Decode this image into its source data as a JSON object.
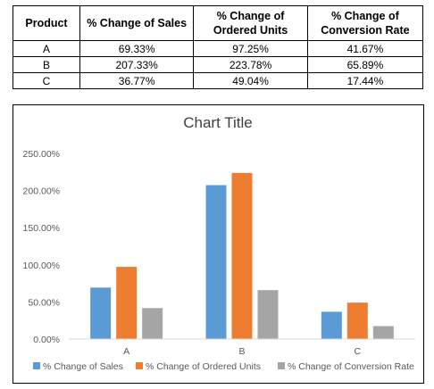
{
  "table": {
    "headers": [
      "Product",
      "% Change of Sales",
      "% Change of Ordered Units",
      "% Change of Conversion Rate"
    ],
    "rows": [
      [
        "A",
        "69.33%",
        "97.25%",
        "41.67%"
      ],
      [
        "B",
        "207.33%",
        "223.78%",
        "65.89%"
      ],
      [
        "C",
        "36.77%",
        "49.04%",
        "17.44%"
      ]
    ]
  },
  "chart_data": {
    "type": "bar",
    "title": "Chart Title",
    "categories": [
      "A",
      "B",
      "C"
    ],
    "series": [
      {
        "name": "% Change of Sales",
        "values": [
          69.33,
          207.33,
          36.77
        ],
        "color": "#5b9bd5"
      },
      {
        "name": "% Change of Ordered Units",
        "values": [
          97.25,
          223.78,
          49.04
        ],
        "color": "#ed7d31"
      },
      {
        "name": "% Change of Conversion Rate",
        "values": [
          41.67,
          65.89,
          17.44
        ],
        "color": "#a5a5a5"
      }
    ],
    "ylim": [
      0,
      250
    ],
    "yticks": [
      "0.00%",
      "50.00%",
      "100.00%",
      "150.00%",
      "200.00%",
      "250.00%"
    ],
    "ytick_values": [
      0,
      50,
      100,
      150,
      200,
      250
    ],
    "grid": false,
    "legend": "bottom"
  }
}
